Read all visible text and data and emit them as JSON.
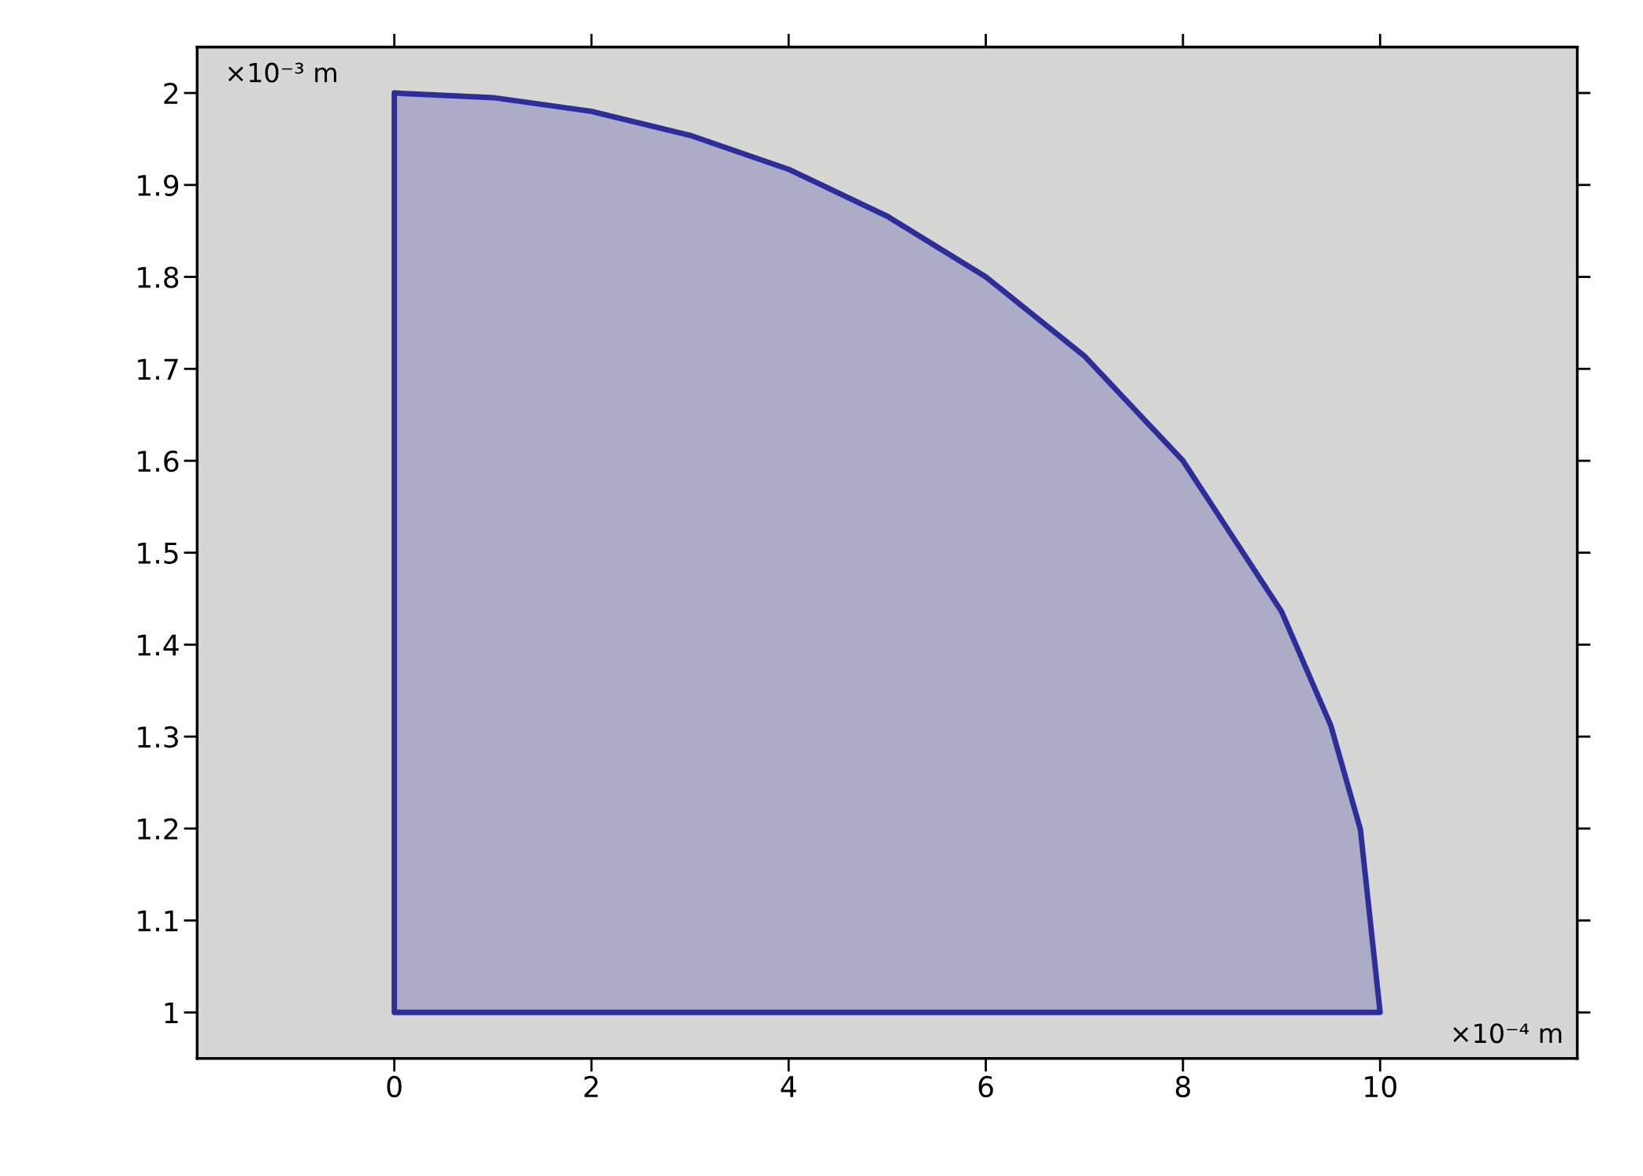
{
  "chart_data": {
    "type": "area",
    "x": [
      0,
      1,
      2,
      3,
      4,
      5,
      6,
      7,
      8,
      9,
      9.5,
      9.8,
      10
    ],
    "series": [
      {
        "color": "#2e2e9a",
        "values": [
          2,
          1.995,
          1.98,
          1.954,
          1.917,
          1.866,
          1.8,
          1.714,
          1.6,
          1.436,
          1.312,
          1.199,
          1.0
        ]
      }
    ],
    "xlabel": "×10⁻⁴ m",
    "ylabel": "×10⁻³ m",
    "xlim": [
      -2,
      12
    ],
    "ylim": [
      0.95,
      2.05
    ],
    "xticks": [
      0,
      2,
      4,
      6,
      8,
      10
    ],
    "yticks": [
      1,
      1.1,
      1.2,
      1.3,
      1.4,
      1.5,
      1.6,
      1.7,
      1.8,
      1.9,
      2
    ],
    "grid": false,
    "legend": false
  }
}
